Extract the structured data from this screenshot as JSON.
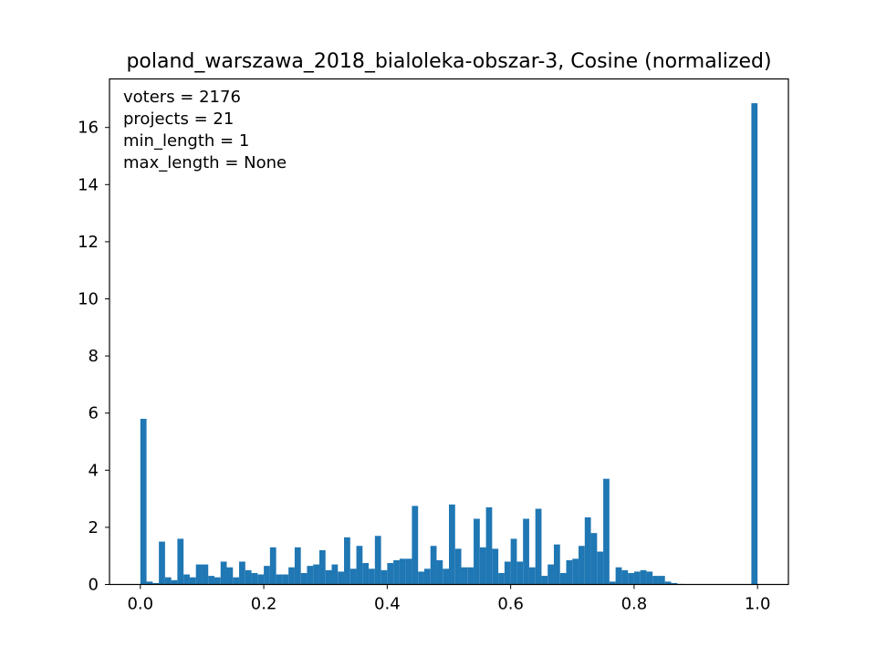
{
  "chart_data": {
    "type": "bar",
    "title": "poland_warszawa_2018_bialoleka-obszar-3, Cosine (normalized)",
    "xlabel": "",
    "ylabel": "",
    "xlim": [
      -0.05,
      1.05
    ],
    "ylim": [
      0,
      17.7
    ],
    "bar_color": "#1f77b4",
    "bin_width": 0.01,
    "x_ticks": [
      {
        "value": 0.0,
        "label": "0.0"
      },
      {
        "value": 0.2,
        "label": "0.2"
      },
      {
        "value": 0.4,
        "label": "0.4"
      },
      {
        "value": 0.6,
        "label": "0.6"
      },
      {
        "value": 0.8,
        "label": "0.8"
      },
      {
        "value": 1.0,
        "label": "1.0"
      }
    ],
    "y_ticks": [
      {
        "value": 0,
        "label": "0"
      },
      {
        "value": 2,
        "label": "2"
      },
      {
        "value": 4,
        "label": "4"
      },
      {
        "value": 6,
        "label": "6"
      },
      {
        "value": 8,
        "label": "8"
      },
      {
        "value": 10,
        "label": "10"
      },
      {
        "value": 12,
        "label": "12"
      },
      {
        "value": 14,
        "label": "14"
      },
      {
        "value": 16,
        "label": "16"
      }
    ],
    "annotations": [
      "voters = 2176",
      "projects = 21",
      "min_length = 1",
      "max_length = None"
    ],
    "bin_starts": [
      0.0,
      0.01,
      0.02,
      0.03,
      0.04,
      0.05,
      0.06,
      0.07,
      0.08,
      0.09,
      0.1,
      0.11,
      0.12,
      0.13,
      0.14,
      0.15,
      0.16,
      0.17,
      0.18,
      0.19,
      0.2,
      0.21,
      0.22,
      0.23,
      0.24,
      0.25,
      0.26,
      0.27,
      0.28,
      0.29,
      0.3,
      0.31,
      0.32,
      0.33,
      0.34,
      0.35,
      0.36,
      0.37,
      0.38,
      0.39,
      0.4,
      0.41,
      0.42,
      0.43,
      0.44,
      0.45,
      0.46,
      0.47,
      0.48,
      0.49,
      0.5,
      0.51,
      0.52,
      0.53,
      0.54,
      0.55,
      0.56,
      0.57,
      0.58,
      0.59,
      0.6,
      0.61,
      0.62,
      0.63,
      0.64,
      0.65,
      0.66,
      0.67,
      0.68,
      0.69,
      0.7,
      0.71,
      0.72,
      0.73,
      0.74,
      0.75,
      0.76,
      0.77,
      0.78,
      0.79,
      0.8,
      0.81,
      0.82,
      0.83,
      0.84,
      0.85,
      0.86,
      0.87,
      0.99
    ],
    "values": [
      5.8,
      0.1,
      0.05,
      1.5,
      0.25,
      0.15,
      1.6,
      0.35,
      0.25,
      0.7,
      0.7,
      0.3,
      0.25,
      0.8,
      0.6,
      0.25,
      0.8,
      0.5,
      0.4,
      0.35,
      0.65,
      1.3,
      0.35,
      0.35,
      0.6,
      1.3,
      0.4,
      0.65,
      0.7,
      1.2,
      0.5,
      0.7,
      0.45,
      1.65,
      0.55,
      1.35,
      0.75,
      0.55,
      1.7,
      0.5,
      0.75,
      0.85,
      0.9,
      0.9,
      2.75,
      0.45,
      0.55,
      1.35,
      0.85,
      0.55,
      2.8,
      1.25,
      0.6,
      0.6,
      2.3,
      1.3,
      2.7,
      1.25,
      0.4,
      0.8,
      1.6,
      0.8,
      2.3,
      0.6,
      2.65,
      0.3,
      0.7,
      1.4,
      0.4,
      0.85,
      0.9,
      1.35,
      2.35,
      1.8,
      1.15,
      3.7,
      0.1,
      0.6,
      0.5,
      0.4,
      0.45,
      0.5,
      0.45,
      0.3,
      0.3,
      0.1,
      0.05,
      0.02,
      16.85
    ]
  }
}
